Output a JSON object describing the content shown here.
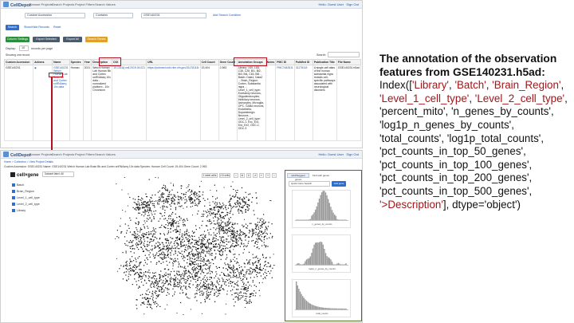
{
  "top_ui": {
    "brand": "CellDepot",
    "nav": [
      "Browse Projects",
      "Search Projects",
      "Project Filters",
      "Search Values"
    ],
    "user": "Hello: Guest User",
    "sign_out": "Sign Out",
    "search": {
      "field": "Custom Accession",
      "operator": "Contains",
      "value": "GSE140231",
      "add_condition": "Add Search Condition"
    },
    "search_button": "Search",
    "links": [
      "Show/Hide Records",
      "Reset"
    ],
    "action_buttons": [
      {
        "label": "Column Settings",
        "color": "#2a8f3b"
      },
      {
        "label": "Export Selected",
        "color": "#4c5b6b"
      },
      {
        "label": "Export All",
        "color": "#4c5b6b"
      },
      {
        "label": "Search Genes",
        "color": "#e0a12a"
      }
    ],
    "display": "Display:",
    "page_size": "10",
    "records_per_page": "records per page",
    "showing": "Showing one record",
    "search_label": "Search:",
    "table": {
      "headers": [
        "Custom Accession",
        "Actions",
        "Name",
        "Species",
        "Year",
        "Description",
        "DOI",
        "URL",
        "Cell Count",
        "Gene Count",
        "Annotation Groups",
        "Notes",
        "PMC ID",
        "PubMed ID",
        "Publication Title",
        "File Name"
      ],
      "row": {
        "accession": "GSE140231",
        "name": "GSE140231 Welch Human Lab Brain Bb and Cortex snRNAseq 10x data",
        "species": "Human",
        "year": "2021",
        "description": "Welch Human Lab Human Bb and Cortex snRNAseq 10x data - normalized platform - 10x Chromium",
        "doi": "10.1016/j.cell.2019.04.021",
        "url": "https://pubmed.ncbi.nlm.nih.gov/31178118/",
        "cell_count": "19,404",
        "gene_count": "2,963",
        "annotation": "Library: 1S9, 1S8, C38, C28, Bi1, Bi2, Bi3, Bi4, C63, Bi5 ... Batch: Data1, Data2 ... Brain_Region: Cortex, Substantia nigra ... Level_1_cell_type: Excitatory neurons, Oligodendrocytes, Inhibitory neurons, Astrocytes, Microglia, OPC, GABA neurons, Endothelia, Dopaminergic Neurons ... Level_2_cell_type: ODC-1, Exc_Ex1, Exc_Ex2, ODC-2, ODC-3",
        "pmc": "PMC7642811",
        "pubmed": "31178118",
        "title": "A single-cell atlas of the human substantia nigra reveals cell-specific pathways associated with neurological disorders",
        "file": "GSE140231.h5ad"
      }
    }
  },
  "bottom_ui": {
    "brand": "CellDepot",
    "nav": [
      "Browse Projects",
      "Search Projects",
      "Project Filters",
      "Search Values"
    ],
    "user": "Hello: Guest User",
    "sign_out": "Sign Out",
    "breadcrumb": "Home > Collection > View Project Details",
    "detail": "Custom Accession: GSE140231  Name: GSE140231 Welch Human Lab Brain Bb and Cortex snRNAseq 10x data  Species: Human  Cell Count: 19,404  Gene Count: 2,963",
    "cellxgene": "cell×gene",
    "color_by": "Dataset label: All",
    "categories": [
      "Batch",
      "Brain_Region",
      "Level_1_cell_type",
      "Level_2_cell_type",
      "Library"
    ],
    "tools": [
      "1 label cells",
      "2.5 cells"
    ],
    "tabs": [
      "Add/Suggest genes",
      "Find with genes"
    ],
    "gene_search": "Quick Gene Search",
    "add_gene": "Add gene",
    "hist_labels": [
      "n_genes_by_counts",
      "log1p_n_genes_by_counts",
      "total_counts"
    ]
  },
  "annotation_text": {
    "title": "The annotation of the observation features from GSE140231.h5ad:",
    "index_open": "Index([",
    "items": [
      {
        "text": "'Library'",
        "highlight": true
      },
      {
        "text": "'Batch'",
        "highlight": true
      },
      {
        "text": "'Brain_Region'",
        "highlight": true
      },
      {
        "text": "'Level_1_cell_type'",
        "highlight": true
      },
      {
        "text": "'Level_2_cell_type'",
        "highlight": true
      },
      {
        "text": "'percent_mito'",
        "highlight": false
      },
      {
        "text": "'n_genes_by_counts'",
        "highlight": false
      },
      {
        "text": "'log1p_n_genes_by_counts'",
        "highlight": false
      },
      {
        "text": "'total_counts'",
        "highlight": false
      },
      {
        "text": "'log1p_total_counts'",
        "highlight": false
      },
      {
        "text": "'pct_counts_in_top_50_genes'",
        "highlight": false
      },
      {
        "text": "'pct_counts_in_top_100_genes'",
        "highlight": false
      },
      {
        "text": "'pct_counts_in_top_200_genes'",
        "highlight": false
      },
      {
        "text": "'pct_counts_in_top_500_genes'",
        "highlight": false
      },
      {
        "text": "'>Description'",
        "highlight": true
      }
    ],
    "index_close": "], dtype='object')"
  }
}
